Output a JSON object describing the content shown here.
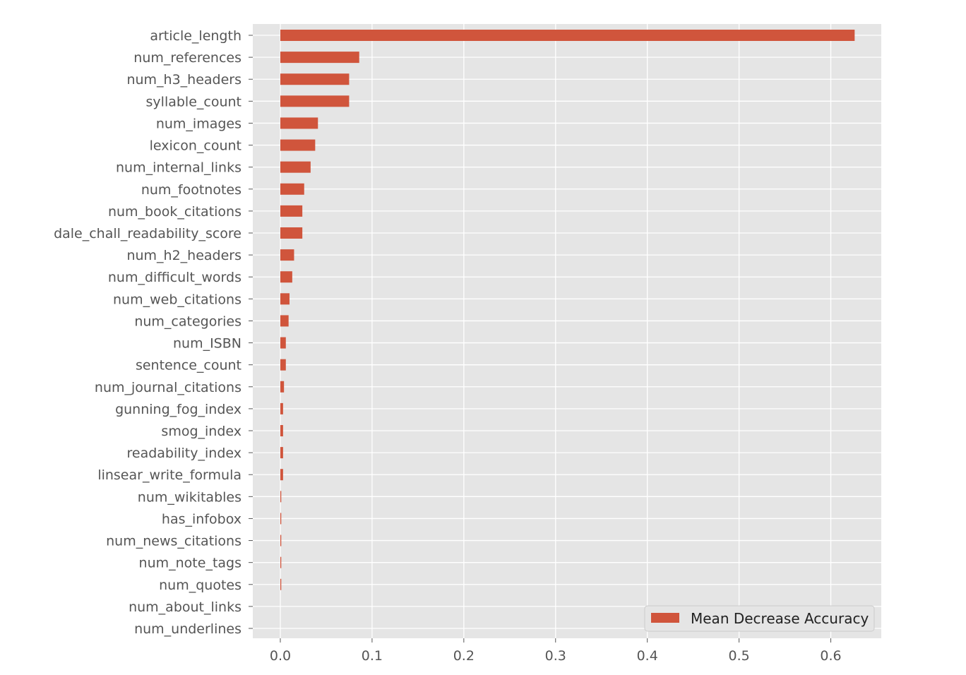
{
  "chart_data": {
    "type": "bar",
    "orientation": "horizontal",
    "title": "",
    "xlabel": "",
    "ylabel": "",
    "categories": [
      "article_length",
      "num_references",
      "num_h3_headers",
      "syllable_count",
      "num_images",
      "lexicon_count",
      "num_internal_links",
      "num_footnotes",
      "num_book_citations",
      "dale_chall_readability_score",
      "num_h2_headers",
      "num_difficult_words",
      "num_web_citations",
      "num_categories",
      "num_ISBN",
      "sentence_count",
      "num_journal_citations",
      "gunning_fog_index",
      "smog_index",
      "readability_index",
      "linsear_write_formula",
      "num_wikitables",
      "has_infobox",
      "num_news_citations",
      "num_note_tags",
      "num_quotes",
      "num_about_links",
      "num_underlines"
    ],
    "series": [
      {
        "name": "Mean Decrease Accuracy",
        "color": "#d0553c",
        "values": [
          0.626,
          0.086,
          0.075,
          0.075,
          0.041,
          0.038,
          0.033,
          0.026,
          0.024,
          0.024,
          0.015,
          0.013,
          0.01,
          0.009,
          0.006,
          0.006,
          0.004,
          0.003,
          0.003,
          0.003,
          0.003,
          0.001,
          0.001,
          0.001,
          0.001,
          0.001,
          0.0,
          0.0
        ]
      }
    ],
    "x_ticks": [
      "0.0",
      "0.1",
      "0.2",
      "0.3",
      "0.4",
      "0.5",
      "0.6"
    ],
    "xlim": [
      -0.03,
      0.655
    ],
    "grid": true,
    "legend_position": "bottom-right",
    "style": {
      "plot_background": "#e5e5e5",
      "grid_color": "#ffffff",
      "bar_color": "#d0553c"
    }
  }
}
